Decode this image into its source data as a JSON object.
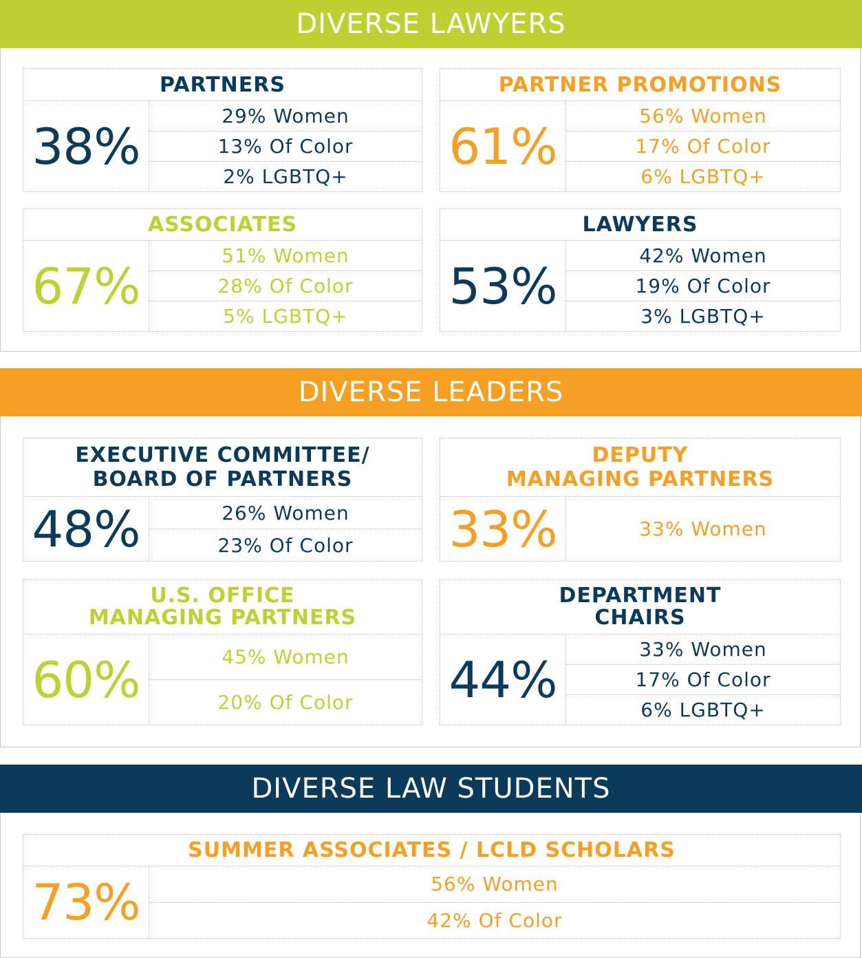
{
  "colors": {
    "navy": "#0c3a5b",
    "orange": "#f6a023",
    "lime": "#bdd232"
  },
  "lawyers": {
    "title": "DIVERSE LAWYERS",
    "partners": {
      "heading": "PARTNERS",
      "total": "38%",
      "rows": [
        "29% Women",
        "13% Of Color",
        "2% LGBTQ+"
      ]
    },
    "promotions": {
      "heading": "PARTNER PROMOTIONS",
      "total": "61%",
      "rows": [
        "56% Women",
        "17% Of Color",
        "6% LGBTQ+"
      ]
    },
    "associates": {
      "heading": "ASSOCIATES",
      "total": "67%",
      "rows": [
        "51% Women",
        "28% Of Color",
        "5% LGBTQ+"
      ]
    },
    "lawyers": {
      "heading": "LAWYERS",
      "total": "53%",
      "rows": [
        "42% Women",
        "19% Of Color",
        "3% LGBTQ+"
      ]
    }
  },
  "leaders": {
    "title": "DIVERSE LEADERS",
    "executive": {
      "heading_1": "EXECUTIVE COMMITTEE/",
      "heading_2": "BOARD OF PARTNERS",
      "total": "48%",
      "rows": [
        "26% Women",
        "23% Of Color"
      ]
    },
    "deputy": {
      "heading_1": "DEPUTY",
      "heading_2": "MANAGING PARTNERS",
      "total": "33%",
      "rows": [
        "33% Women"
      ]
    },
    "office": {
      "heading_1": "U.S. OFFICE",
      "heading_2": "MANAGING PARTNERS",
      "total": "60%",
      "rows": [
        "45% Women",
        "20% Of Color"
      ]
    },
    "chairs": {
      "heading_1": "DEPARTMENT",
      "heading_2": "CHAIRS",
      "total": "44%",
      "rows": [
        "33% Women",
        "17% Of Color",
        "6% LGBTQ+"
      ]
    }
  },
  "students": {
    "title": "DIVERSE LAW STUDENTS",
    "summer": {
      "heading": "SUMMER ASSOCIATES / LCLD SCHOLARS",
      "total": "73%",
      "rows": [
        "56% Women",
        "42% Of Color"
      ]
    }
  }
}
